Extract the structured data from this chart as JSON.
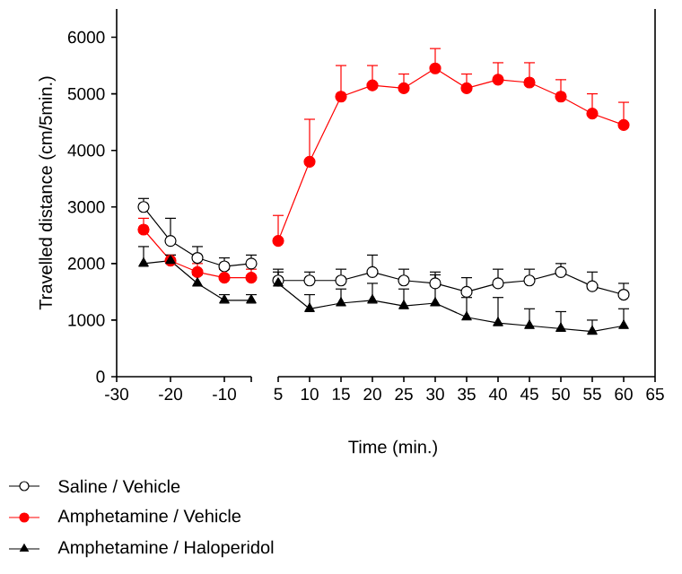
{
  "chart_data": [
    {
      "type": "line",
      "ylabel": "Travelled distance (cm/5min.)",
      "x": [
        -25,
        -20,
        -15,
        -10,
        -5
      ],
      "xlim": [
        -30,
        -5
      ],
      "xticks": [
        -30,
        -20,
        -10,
        {
          "value": -5,
          "label": null
        }
      ],
      "ylim": [
        0,
        6500
      ],
      "yticks": [
        0,
        1000,
        2000,
        3000,
        4000,
        5000,
        6000
      ],
      "line_style": "solid",
      "grid": false,
      "series": [
        {
          "color": "#000000",
          "marker": "circle",
          "values": [
            3000,
            2400,
            2100,
            1950,
            2000
          ],
          "errors": [
            [
              3000,
              3150
            ],
            [
              2400,
              2800
            ],
            [
              2100,
              2300
            ],
            [
              1950,
              2100
            ],
            [
              2000,
              2150
            ]
          ]
        },
        {
          "color": "#ff0000",
          "marker": "circle",
          "values": [
            2600,
            2050,
            1850,
            1750,
            1750
          ],
          "errors": [
            [
              2600,
              2800
            ],
            [
              2050,
              2150
            ],
            [
              1850,
              2000
            ],
            [
              1750,
              1900
            ],
            [
              1750,
              1900
            ]
          ]
        },
        {
          "color": "#000000",
          "marker": "triangle",
          "values": [
            2000,
            2050,
            1650,
            1350,
            1350
          ],
          "errors": [
            [
              2000,
              2300
            ],
            [
              2050,
              2150
            ],
            [
              1650,
              1800
            ],
            [
              1350,
              1450
            ],
            [
              1350,
              1450
            ]
          ]
        }
      ]
    },
    {
      "type": "line",
      "xlabel": "Time (min.)",
      "x": [
        5,
        10,
        15,
        20,
        25,
        30,
        35,
        40,
        45,
        50,
        55,
        60
      ],
      "xlim": [
        5,
        65
      ],
      "xticks": [
        5,
        10,
        15,
        20,
        25,
        30,
        35,
        40,
        45,
        50,
        55,
        60,
        65
      ],
      "ylim": [
        0,
        6500
      ],
      "tick_labels": "x",
      "legend": "bottom",
      "line_style": "solid",
      "grid": false,
      "series": [
        {
          "name": "Saline / Vehicle",
          "color": "#000000",
          "marker": "circle",
          "values": [
            1700,
            1700,
            1700,
            1850,
            1700,
            1650,
            1500,
            1650,
            1700,
            1850,
            1600,
            1450
          ],
          "errors": [
            [
              1700,
              1900
            ],
            [
              1700,
              1850
            ],
            [
              1700,
              1900
            ],
            [
              1850,
              2150
            ],
            [
              1700,
              1900
            ],
            [
              1650,
              1850
            ],
            [
              1500,
              1750
            ],
            [
              1650,
              1900
            ],
            [
              1700,
              1900
            ],
            [
              1850,
              2000
            ],
            [
              1600,
              1850
            ],
            [
              1450,
              1650
            ]
          ]
        },
        {
          "name": "Amphetamine / Vehicle",
          "color": "#ff0000",
          "marker": "circle",
          "values": [
            2400,
            3800,
            4950,
            5150,
            5100,
            5450,
            5100,
            5250,
            5200,
            4950,
            4650,
            4450
          ],
          "errors": [
            [
              2400,
              2850
            ],
            [
              3800,
              4550
            ],
            [
              4950,
              5500
            ],
            [
              5150,
              5500
            ],
            [
              5100,
              5350
            ],
            [
              5450,
              5800
            ],
            [
              5100,
              5350
            ],
            [
              5250,
              5550
            ],
            [
              5200,
              5550
            ],
            [
              4950,
              5250
            ],
            [
              4650,
              5000
            ],
            [
              4450,
              4850
            ]
          ]
        },
        {
          "name": "Amphetamine / Haloperidol",
          "color": "#000000",
          "marker": "triangle",
          "values": [
            1650,
            1200,
            1300,
            1350,
            1250,
            1300,
            1050,
            950,
            900,
            850,
            800,
            900
          ],
          "errors": [
            [
              1650,
              1850
            ],
            [
              1200,
              1450
            ],
            [
              1300,
              1550
            ],
            [
              1350,
              1650
            ],
            [
              1250,
              1550
            ],
            [
              1300,
              1800
            ],
            [
              1050,
              1400
            ],
            [
              950,
              1400
            ],
            [
              900,
              1200
            ],
            [
              850,
              1150
            ],
            [
              800,
              1000
            ],
            [
              900,
              1200
            ]
          ]
        }
      ]
    }
  ]
}
